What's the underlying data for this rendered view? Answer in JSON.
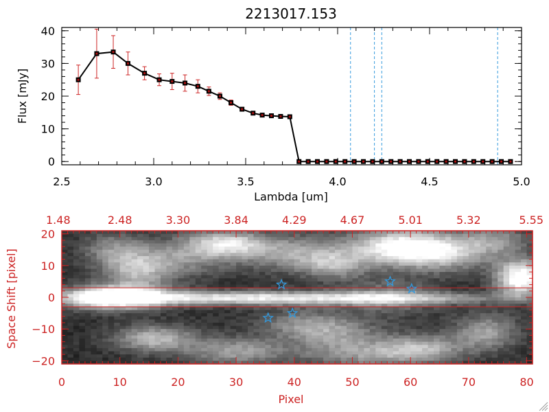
{
  "title": "2213017.153",
  "colors": {
    "axis": "#000000",
    "red": "#cc2222",
    "blue": "#3399dd",
    "errbar": "#cc2222"
  },
  "chart_data": [
    {
      "type": "line",
      "title": "2213017.153",
      "xlabel": "Lambda [um]",
      "ylabel": "Flux [mJy]",
      "xlim": [
        2.5,
        5.0
      ],
      "ylim": [
        -1,
        41
      ],
      "xticks": [
        2.5,
        3.0,
        3.5,
        4.0,
        4.5,
        5.0
      ],
      "xtick_labels": [
        "2.5",
        "3.0",
        "3.5",
        "4.0",
        "4.5",
        "5.0"
      ],
      "yticks": [
        0,
        10,
        20,
        30,
        40
      ],
      "ytick_labels": [
        "0",
        "10",
        "20",
        "30",
        "40"
      ],
      "series": [
        {
          "name": "flux",
          "x": [
            2.59,
            2.69,
            2.78,
            2.86,
            2.95,
            3.03,
            3.1,
            3.17,
            3.24,
            3.3,
            3.36,
            3.42,
            3.48,
            3.54,
            3.59,
            3.64,
            3.69,
            3.74,
            3.79,
            3.84,
            3.89,
            3.94,
            3.99,
            4.04,
            4.09,
            4.14,
            4.19,
            4.24,
            4.29,
            4.34,
            4.39,
            4.44,
            4.49,
            4.54,
            4.59,
            4.64,
            4.69,
            4.74,
            4.79,
            4.84,
            4.89,
            4.94
          ],
          "y": [
            25,
            33,
            33.5,
            30,
            27,
            25,
            24.5,
            24,
            23,
            21.5,
            20,
            18,
            16,
            14.8,
            14.2,
            14,
            13.8,
            13.7,
            0,
            0,
            0,
            0,
            0,
            0,
            0,
            0,
            0,
            0,
            0,
            0,
            0,
            0,
            0,
            0,
            0,
            0,
            0,
            0,
            0,
            0,
            0,
            0
          ],
          "yerr": [
            4.5,
            7.5,
            5,
            3.5,
            2,
            1.8,
            2.5,
            2.5,
            2,
            1.3,
            1,
            0.8,
            0.6,
            0.5,
            0.5,
            0.4,
            0.4,
            0.4,
            0,
            0,
            0,
            0,
            0,
            0,
            0,
            0,
            0,
            0,
            0,
            0,
            0,
            0,
            0,
            0,
            0,
            0,
            0,
            0,
            0,
            0,
            0,
            0
          ]
        }
      ],
      "reference_lines_x": [
        4.07,
        4.2,
        4.24,
        4.87
      ]
    },
    {
      "type": "heatmap",
      "xlabel": "Pixel",
      "ylabel": "Space Shift [pixel]",
      "xlim": [
        0,
        81
      ],
      "ylim": [
        -21,
        21
      ],
      "xticks": [
        0,
        10,
        20,
        30,
        40,
        50,
        60,
        70,
        80
      ],
      "xtick_labels": [
        "0",
        "10",
        "20",
        "30",
        "40",
        "50",
        "60",
        "70",
        "80"
      ],
      "yticks": [
        -20,
        -10,
        0,
        10,
        20
      ],
      "ytick_labels": [
        "−20",
        "−10",
        "0",
        "10",
        "20"
      ],
      "top_axis_ticks": [
        0,
        10,
        20,
        30,
        40,
        50,
        60,
        70,
        80
      ],
      "top_axis_labels": [
        "1.48",
        "2.48",
        "3.30",
        "3.84",
        "4.29",
        "4.67",
        "5.01",
        "5.32",
        "5.55"
      ],
      "extraction_band": [
        -3,
        3
      ],
      "stars": [
        {
          "x": 37.8,
          "y": 4
        },
        {
          "x": 56.5,
          "y": 5
        },
        {
          "x": 60.2,
          "y": 2.7
        },
        {
          "x": 35.5,
          "y": -6.5
        },
        {
          "x": 39.7,
          "y": -5
        }
      ],
      "blobs": [
        {
          "x": 9,
          "y": 0,
          "sx": 6,
          "sy": 2.6,
          "amp": 1.0
        },
        {
          "x": 25,
          "y": -0.2,
          "sx": 18,
          "sy": 1.6,
          "amp": 0.55
        },
        {
          "x": 45,
          "y": -0.3,
          "sx": 15,
          "sy": 1.4,
          "amp": 0.38
        },
        {
          "x": 66,
          "y": -0.3,
          "sx": 10,
          "sy": 1.3,
          "amp": 0.25
        },
        {
          "x": 28,
          "y": 17,
          "sx": 5,
          "sy": 3,
          "amp": 0.65
        },
        {
          "x": 13,
          "y": 8,
          "sx": 4,
          "sy": 4,
          "amp": 0.45
        },
        {
          "x": 20,
          "y": 12,
          "sx": 6,
          "sy": 4,
          "amp": 0.35
        },
        {
          "x": 40,
          "y": 14,
          "sx": 7,
          "sy": 4,
          "amp": 0.45
        },
        {
          "x": 47,
          "y": 10,
          "sx": 4,
          "sy": 3,
          "amp": 0.4
        },
        {
          "x": 58,
          "y": 16,
          "sx": 6,
          "sy": 4,
          "amp": 0.75
        },
        {
          "x": 66,
          "y": 14,
          "sx": 6,
          "sy": 4,
          "amp": 0.55
        },
        {
          "x": 79,
          "y": 6,
          "sx": 3,
          "sy": 4,
          "amp": 0.95
        },
        {
          "x": 75,
          "y": 18,
          "sx": 4,
          "sy": 3,
          "amp": 0.35
        },
        {
          "x": 56,
          "y": 0,
          "sx": 6,
          "sy": 4,
          "amp": 0.3
        },
        {
          "x": 16,
          "y": -13,
          "sx": 5,
          "sy": 3,
          "amp": 0.55
        },
        {
          "x": 30,
          "y": -17,
          "sx": 6,
          "sy": 3,
          "amp": 0.45
        },
        {
          "x": 47,
          "y": -12,
          "sx": 6,
          "sy": 3,
          "amp": 0.35
        },
        {
          "x": 52,
          "y": -18,
          "sx": 8,
          "sy": 3,
          "amp": 0.4
        },
        {
          "x": 62,
          "y": -16,
          "sx": 5,
          "sy": 3,
          "amp": 0.45
        },
        {
          "x": 73,
          "y": -11,
          "sx": 4,
          "sy": 4,
          "amp": 0.45
        },
        {
          "x": 42,
          "y": -8,
          "sx": 6,
          "sy": 3,
          "amp": 0.35
        },
        {
          "x": 9,
          "y": 15,
          "sx": 4,
          "sy": 4,
          "amp": 0.35
        }
      ]
    }
  ]
}
